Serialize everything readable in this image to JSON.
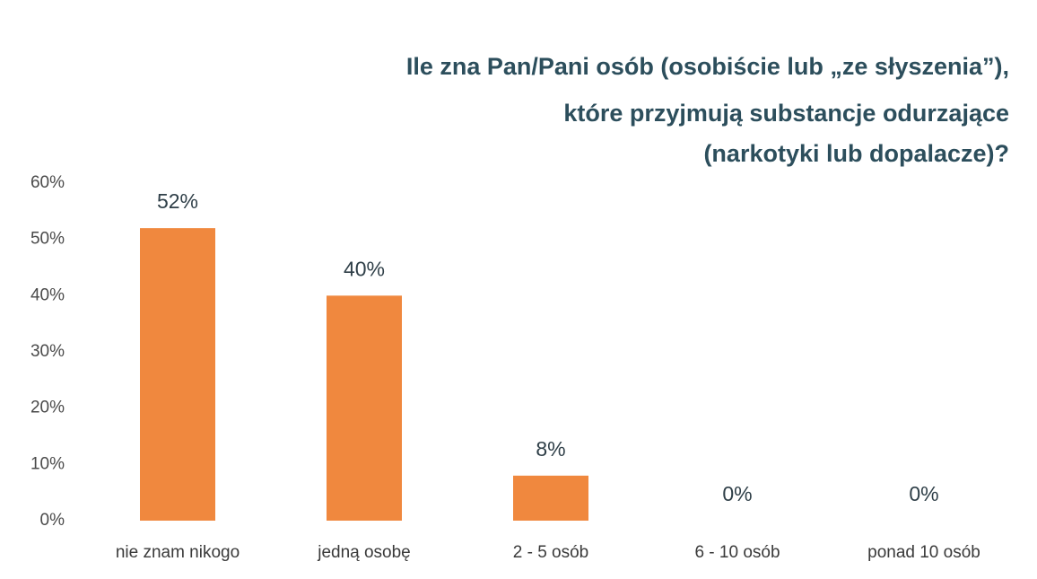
{
  "chart_data": {
    "type": "bar",
    "title": [
      "Ile zna Pan/Pani osób (osobiście lub „ze słyszenia”),",
      "które przyjmują substancje odurzające",
      "(narkotyki lub dopalacze)?"
    ],
    "categories": [
      "nie znam nikogo",
      "jedną osobę",
      "2 - 5 osób",
      "6 - 10 osób",
      "ponad 10 osób"
    ],
    "values": [
      52,
      40,
      8,
      0,
      0
    ],
    "value_labels": [
      "52%",
      "40%",
      "8%",
      "0%",
      "0%"
    ],
    "color": "#f0883e",
    "ylim": [
      0,
      60
    ],
    "yticks": [
      {
        "value": 0,
        "label": "0%"
      },
      {
        "value": 10,
        "label": "10%"
      },
      {
        "value": 20,
        "label": "20%"
      },
      {
        "value": 30,
        "label": "30%"
      },
      {
        "value": 40,
        "label": "40%"
      },
      {
        "value": 50,
        "label": "50%"
      },
      {
        "value": 60,
        "label": "60%"
      }
    ],
    "grid": false
  }
}
